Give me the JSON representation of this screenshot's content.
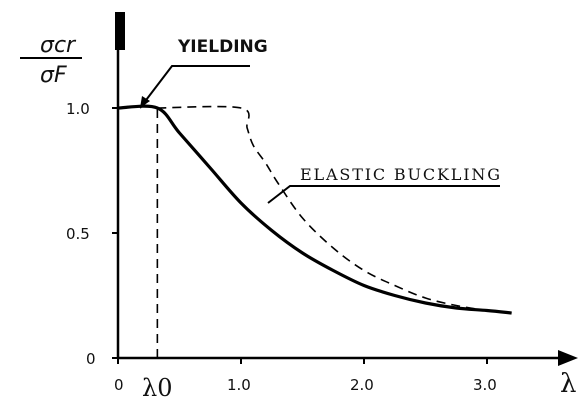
{
  "chart_data": {
    "type": "line",
    "ylabel_numerator": "σcr",
    "ylabel_denominator": "σF",
    "xlabel": "λ",
    "lambda0_label": "λ0",
    "x_ticks": [
      "0",
      "1.0",
      "2.0",
      "3.0"
    ],
    "y_ticks": [
      "0",
      "0.5",
      "1.0"
    ],
    "x_tick_values": [
      0,
      1.0,
      2.0,
      3.0
    ],
    "y_tick_values": [
      0,
      0.5,
      1.0
    ],
    "xlim": [
      0,
      3.2
    ],
    "ylim": [
      0,
      1.25
    ],
    "lambda0": 0.32,
    "annotations": [
      {
        "text": "YIELDING",
        "points_to": [
          0.2,
          1.0
        ]
      },
      {
        "text": "ELASTIC BUCKLING",
        "points_to": [
          1.2,
          0.78
        ]
      }
    ],
    "series": [
      {
        "style": "solid",
        "x": [
          0,
          0.32,
          0.5,
          0.75,
          1.0,
          1.25,
          1.5,
          1.75,
          2.0,
          2.25,
          2.5,
          2.75,
          3.0,
          3.2
        ],
        "y": [
          1.0,
          1.0,
          0.9,
          0.76,
          0.62,
          0.51,
          0.42,
          0.35,
          0.29,
          0.25,
          0.22,
          0.2,
          0.19,
          0.18
        ]
      },
      {
        "style": "dashed",
        "x": [
          0.32,
          1.0,
          1.05,
          1.1,
          1.2,
          1.3,
          1.5,
          1.75,
          2.0,
          2.25,
          2.5,
          2.75,
          3.0,
          3.2
        ],
        "y": [
          1.0,
          1.0,
          0.92,
          0.85,
          0.78,
          0.7,
          0.56,
          0.44,
          0.35,
          0.29,
          0.24,
          0.21,
          0.19,
          0.18
        ]
      },
      {
        "style": "dashed",
        "x": [
          0.32,
          0.32
        ],
        "y": [
          0,
          1.0
        ]
      }
    ]
  }
}
